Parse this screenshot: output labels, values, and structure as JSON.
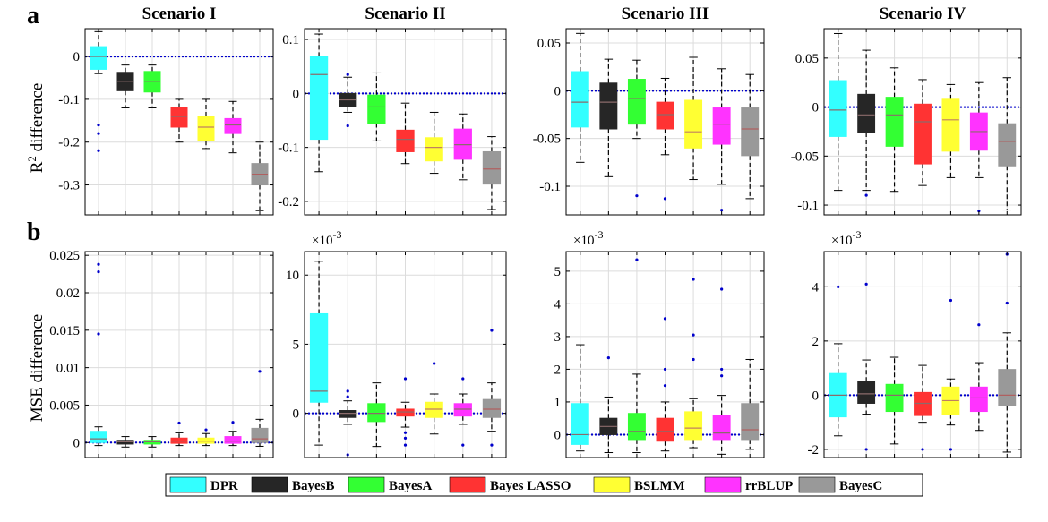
{
  "figure": {
    "row_letters": [
      "a",
      "b"
    ],
    "ylabels": {
      "r2": {
        "prefix": "R",
        "sup": "2",
        "suffix": " difference"
      },
      "mse": "MSE difference"
    },
    "scale_prefix": "×10",
    "scale_exp": "-3"
  },
  "legend": {
    "items": [
      {
        "label": "DPR",
        "color": "#33FFFF"
      },
      {
        "label": "BayesB",
        "color": "#262626"
      },
      {
        "label": "BayesA",
        "color": "#33FF33"
      },
      {
        "label": "Bayes LASSO",
        "color": "#FF3333"
      },
      {
        "label": "BSLMM",
        "color": "#FFFF33"
      },
      {
        "label": "rrBLUP",
        "color": "#FF33FF"
      },
      {
        "label": "BayesC",
        "color": "#999999"
      }
    ]
  },
  "chart_data": [
    {
      "type": "box",
      "title": "Scenario I",
      "row": 0,
      "col": 0,
      "ylim": [
        -0.37,
        0.065
      ],
      "yticks": [
        0,
        -0.1,
        -0.2,
        -0.3
      ],
      "ytick_labels": [
        "0",
        "-0.1",
        "-0.2",
        "-0.3"
      ],
      "scale_note": false,
      "categories": [
        "DPR",
        "BayesB",
        "BayesA",
        "Bayes LASSO",
        "BSLMM",
        "rrBLUP",
        "BayesC"
      ],
      "boxes": [
        {
          "whislo": -0.04,
          "q1": -0.03,
          "med": 0.0,
          "q3": 0.023,
          "whishi": 0.058,
          "fliers": [
            -0.16,
            -0.18,
            -0.22
          ]
        },
        {
          "whislo": -0.12,
          "q1": -0.08,
          "med": -0.058,
          "q3": -0.037,
          "whishi": -0.02,
          "fliers": []
        },
        {
          "whislo": -0.12,
          "q1": -0.083,
          "med": -0.058,
          "q3": -0.035,
          "whishi": -0.02,
          "fliers": []
        },
        {
          "whislo": -0.2,
          "q1": -0.165,
          "med": -0.14,
          "q3": -0.12,
          "whishi": -0.1,
          "fliers": []
        },
        {
          "whislo": -0.215,
          "q1": -0.197,
          "med": -0.165,
          "q3": -0.14,
          "whishi": -0.1,
          "fliers": []
        },
        {
          "whislo": -0.225,
          "q1": -0.18,
          "med": -0.16,
          "q3": -0.145,
          "whishi": -0.105,
          "fliers": []
        },
        {
          "whislo": -0.36,
          "q1": -0.3,
          "med": -0.275,
          "q3": -0.25,
          "whishi": -0.2,
          "fliers": []
        }
      ]
    },
    {
      "type": "box",
      "title": "Scenario II",
      "row": 0,
      "col": 1,
      "ylim": [
        -0.225,
        0.12
      ],
      "yticks": [
        0.1,
        0,
        -0.1,
        -0.2
      ],
      "ytick_labels": [
        "0.1",
        "0",
        "-0.1",
        "-0.2"
      ],
      "scale_note": false,
      "categories": [
        "DPR",
        "BayesB",
        "BayesA",
        "Bayes LASSO",
        "BSLMM",
        "rrBLUP",
        "BayesC"
      ],
      "boxes": [
        {
          "whislo": -0.145,
          "q1": -0.085,
          "med": 0.035,
          "q3": 0.068,
          "whishi": 0.11,
          "fliers": []
        },
        {
          "whislo": -0.035,
          "q1": -0.025,
          "med": -0.012,
          "q3": 0.0,
          "whishi": 0.03,
          "fliers": [
            0.035,
            -0.06
          ]
        },
        {
          "whislo": -0.088,
          "q1": -0.055,
          "med": -0.025,
          "q3": -0.003,
          "whishi": 0.038,
          "fliers": []
        },
        {
          "whislo": -0.13,
          "q1": -0.108,
          "med": -0.085,
          "q3": -0.068,
          "whishi": -0.018,
          "fliers": []
        },
        {
          "whislo": -0.148,
          "q1": -0.125,
          "med": -0.1,
          "q3": -0.082,
          "whishi": -0.035,
          "fliers": []
        },
        {
          "whislo": -0.16,
          "q1": -0.122,
          "med": -0.095,
          "q3": -0.066,
          "whishi": -0.038,
          "fliers": []
        },
        {
          "whislo": -0.215,
          "q1": -0.168,
          "med": -0.14,
          "q3": -0.108,
          "whishi": -0.08,
          "fliers": []
        }
      ]
    },
    {
      "type": "box",
      "title": "Scenario III",
      "row": 0,
      "col": 2,
      "ylim": [
        -0.13,
        0.065
      ],
      "yticks": [
        0.05,
        0,
        -0.05,
        -0.1
      ],
      "ytick_labels": [
        "0.05",
        "0",
        "-0.05",
        "-0.1"
      ],
      "scale_note": false,
      "categories": [
        "DPR",
        "BayesB",
        "BayesA",
        "Bayes LASSO",
        "BSLMM",
        "rrBLUP",
        "BayesC"
      ],
      "boxes": [
        {
          "whislo": -0.075,
          "q1": -0.038,
          "med": -0.012,
          "q3": 0.02,
          "whishi": 0.06,
          "fliers": []
        },
        {
          "whislo": -0.09,
          "q1": -0.04,
          "med": -0.012,
          "q3": 0.008,
          "whishi": 0.033,
          "fliers": []
        },
        {
          "whislo": -0.05,
          "q1": -0.035,
          "med": -0.008,
          "q3": 0.012,
          "whishi": 0.032,
          "fliers": [
            -0.11
          ]
        },
        {
          "whislo": -0.067,
          "q1": -0.04,
          "med": -0.025,
          "q3": -0.012,
          "whishi": 0.013,
          "fliers": [
            -0.113
          ]
        },
        {
          "whislo": -0.093,
          "q1": -0.06,
          "med": -0.043,
          "q3": -0.01,
          "whishi": 0.035,
          "fliers": []
        },
        {
          "whislo": -0.098,
          "q1": -0.056,
          "med": -0.035,
          "q3": -0.018,
          "whishi": 0.023,
          "fliers": [
            -0.125
          ]
        },
        {
          "whislo": -0.113,
          "q1": -0.068,
          "med": -0.04,
          "q3": -0.018,
          "whishi": 0.017,
          "fliers": []
        }
      ]
    },
    {
      "type": "box",
      "title": "Scenario IV",
      "row": 0,
      "col": 3,
      "ylim": [
        -0.11,
        0.08
      ],
      "yticks": [
        0.05,
        0,
        -0.05,
        -0.1
      ],
      "ytick_labels": [
        "0.05",
        "0",
        "-0.05",
        "-0.1"
      ],
      "scale_note": false,
      "categories": [
        "DPR",
        "BayesB",
        "BayesA",
        "Bayes LASSO",
        "BSLMM",
        "rrBLUP",
        "BayesC"
      ],
      "boxes": [
        {
          "whislo": -0.085,
          "q1": -0.03,
          "med": -0.003,
          "q3": 0.027,
          "whishi": 0.075,
          "fliers": []
        },
        {
          "whislo": -0.085,
          "q1": -0.026,
          "med": -0.008,
          "q3": 0.013,
          "whishi": 0.058,
          "fliers": [
            -0.09
          ]
        },
        {
          "whislo": -0.086,
          "q1": -0.04,
          "med": -0.008,
          "q3": 0.01,
          "whishi": 0.04,
          "fliers": []
        },
        {
          "whislo": -0.08,
          "q1": -0.058,
          "med": -0.015,
          "q3": 0.003,
          "whishi": 0.028,
          "fliers": []
        },
        {
          "whislo": -0.072,
          "q1": -0.045,
          "med": -0.013,
          "q3": 0.008,
          "whishi": 0.023,
          "fliers": []
        },
        {
          "whislo": -0.072,
          "q1": -0.044,
          "med": -0.025,
          "q3": -0.006,
          "whishi": 0.025,
          "fliers": [
            -0.106
          ]
        },
        {
          "whislo": -0.105,
          "q1": -0.06,
          "med": -0.035,
          "q3": -0.017,
          "whishi": 0.03,
          "fliers": []
        }
      ]
    },
    {
      "type": "box",
      "title": "",
      "row": 1,
      "col": 0,
      "ylim": [
        -0.002,
        0.0255
      ],
      "yticks": [
        0.025,
        0.02,
        0.015,
        0.01,
        0.005,
        0
      ],
      "ytick_labels": [
        "0.025",
        "0.02",
        "0.015",
        "0.01",
        "0.005",
        "0"
      ],
      "scale_note": false,
      "categories": [
        "DPR",
        "BayesB",
        "BayesA",
        "Bayes LASSO",
        "BSLMM",
        "rrBLUP",
        "BayesC"
      ],
      "boxes": [
        {
          "whislo": -0.0004,
          "q1": 0.0,
          "med": 0.0005,
          "q3": 0.0015,
          "whishi": 0.0021,
          "fliers": [
            0.0238,
            0.0228,
            0.0145
          ]
        },
        {
          "whislo": -0.0006,
          "q1": -0.0002,
          "med": 0.0001,
          "q3": 0.0003,
          "whishi": 0.0008,
          "fliers": []
        },
        {
          "whislo": -0.0006,
          "q1": -0.0002,
          "med": 0.0001,
          "q3": 0.0003,
          "whishi": 0.0008,
          "fliers": []
        },
        {
          "whislo": -0.0004,
          "q1": -0.0001,
          "med": 0.0002,
          "q3": 0.0006,
          "whishi": 0.0013,
          "fliers": [
            0.0026
          ]
        },
        {
          "whislo": -0.0004,
          "q1": -0.0001,
          "med": 0.0002,
          "q3": 0.0006,
          "whishi": 0.0012,
          "fliers": [
            0.0017
          ]
        },
        {
          "whislo": -0.0004,
          "q1": -0.0001,
          "med": 0.0002,
          "q3": 0.0008,
          "whishi": 0.0015,
          "fliers": [
            0.0027
          ]
        },
        {
          "whislo": -0.0005,
          "q1": 0.0,
          "med": 0.0005,
          "q3": 0.0019,
          "whishi": 0.0031,
          "fliers": [
            0.0095
          ]
        }
      ]
    },
    {
      "type": "box",
      "title": "",
      "row": 1,
      "col": 1,
      "ylim": [
        -3.2,
        11.7
      ],
      "yticks": [
        10,
        5,
        0
      ],
      "ytick_labels": [
        "10",
        "5",
        "0"
      ],
      "scale_note": true,
      "categories": [
        "DPR",
        "BayesB",
        "BayesA",
        "Bayes LASSO",
        "BSLMM",
        "rrBLUP",
        "BayesC"
      ],
      "boxes": [
        {
          "whislo": -2.3,
          "q1": 0.8,
          "med": 1.6,
          "q3": 7.2,
          "whishi": 11.0,
          "fliers": []
        },
        {
          "whislo": -0.8,
          "q1": -0.3,
          "med": 0.0,
          "q3": 0.2,
          "whishi": 0.9,
          "fliers": [
            1.2,
            1.6,
            -3.0
          ]
        },
        {
          "whislo": -2.4,
          "q1": -0.6,
          "med": 0.0,
          "q3": 0.7,
          "whishi": 2.2,
          "fliers": []
        },
        {
          "whislo": -1.0,
          "q1": -0.2,
          "med": 0.1,
          "q3": 0.3,
          "whishi": 0.8,
          "fliers": [
            2.5,
            -1.4,
            -1.8,
            -2.3
          ]
        },
        {
          "whislo": -1.5,
          "q1": -0.3,
          "med": 0.3,
          "q3": 0.8,
          "whishi": 1.4,
          "fliers": [
            3.6
          ]
        },
        {
          "whislo": -0.8,
          "q1": -0.2,
          "med": 0.3,
          "q3": 0.7,
          "whishi": 1.4,
          "fliers": [
            2.5,
            -2.3
          ]
        },
        {
          "whislo": -1.3,
          "q1": -0.3,
          "med": 0.3,
          "q3": 1.0,
          "whishi": 2.2,
          "fliers": [
            6.0,
            -2.3
          ]
        }
      ]
    },
    {
      "type": "box",
      "title": "",
      "row": 1,
      "col": 2,
      "ylim": [
        -0.7,
        5.6
      ],
      "yticks": [
        5,
        4,
        3,
        2,
        1,
        0
      ],
      "ytick_labels": [
        "5",
        "4",
        "3",
        "2",
        "1",
        "0"
      ],
      "scale_note": true,
      "categories": [
        "DPR",
        "BayesB",
        "BayesA",
        "Bayes LASSO",
        "BSLMM",
        "rrBLUP",
        "BayesC"
      ],
      "boxes": [
        {
          "whislo": -0.5,
          "q1": -0.3,
          "med": 0.0,
          "q3": 0.95,
          "whishi": 2.75,
          "fliers": []
        },
        {
          "whislo": -0.55,
          "q1": 0.0,
          "med": 0.25,
          "q3": 0.5,
          "whishi": 1.15,
          "fliers": [
            2.35
          ]
        },
        {
          "whislo": -0.55,
          "q1": -0.15,
          "med": 0.1,
          "q3": 0.65,
          "whishi": 1.85,
          "fliers": [
            5.35
          ]
        },
        {
          "whislo": -0.5,
          "q1": -0.2,
          "med": 0.1,
          "q3": 0.5,
          "whishi": 1.0,
          "fliers": [
            3.55,
            2.0,
            1.5
          ]
        },
        {
          "whislo": -0.4,
          "q1": -0.15,
          "med": 0.2,
          "q3": 0.7,
          "whishi": 1.1,
          "fliers": [
            4.75,
            3.05,
            2.3
          ]
        },
        {
          "whislo": -0.6,
          "q1": -0.15,
          "med": 0.05,
          "q3": 0.6,
          "whishi": 1.2,
          "fliers": [
            4.45,
            2.0,
            1.8
          ]
        },
        {
          "whislo": -0.45,
          "q1": -0.15,
          "med": 0.15,
          "q3": 0.95,
          "whishi": 2.3,
          "fliers": []
        }
      ]
    },
    {
      "type": "box",
      "title": "",
      "row": 1,
      "col": 3,
      "ylim": [
        -2.3,
        5.3
      ],
      "yticks": [
        4,
        2,
        0,
        -2
      ],
      "ytick_labels": [
        "4",
        "2",
        "0",
        "-2"
      ],
      "scale_note": true,
      "categories": [
        "DPR",
        "BayesB",
        "BayesA",
        "Bayes LASSO",
        "BSLMM",
        "rrBLUP",
        "BayesC"
      ],
      "boxes": [
        {
          "whislo": -1.5,
          "q1": -0.8,
          "med": 0.0,
          "q3": 0.8,
          "whishi": 1.9,
          "fliers": [
            4.0
          ]
        },
        {
          "whislo": -0.7,
          "q1": -0.3,
          "med": 0.05,
          "q3": 0.5,
          "whishi": 1.3,
          "fliers": [
            4.1,
            -2.0
          ]
        },
        {
          "whislo": -1.8,
          "q1": -0.6,
          "med": 0.0,
          "q3": 0.4,
          "whishi": 1.4,
          "fliers": []
        },
        {
          "whislo": -1.0,
          "q1": -0.75,
          "med": -0.3,
          "q3": 0.1,
          "whishi": 1.1,
          "fliers": [
            -2.0
          ]
        },
        {
          "whislo": -1.1,
          "q1": -0.7,
          "med": -0.2,
          "q3": 0.3,
          "whishi": 0.6,
          "fliers": [
            3.5,
            -2.0
          ]
        },
        {
          "whislo": -1.3,
          "q1": -0.6,
          "med": -0.1,
          "q3": 0.3,
          "whishi": 1.2,
          "fliers": [
            2.6
          ]
        },
        {
          "whislo": -2.1,
          "q1": -0.4,
          "med": 0.0,
          "q3": 0.95,
          "whishi": 2.3,
          "fliers": [
            5.2,
            3.4
          ]
        }
      ]
    }
  ]
}
